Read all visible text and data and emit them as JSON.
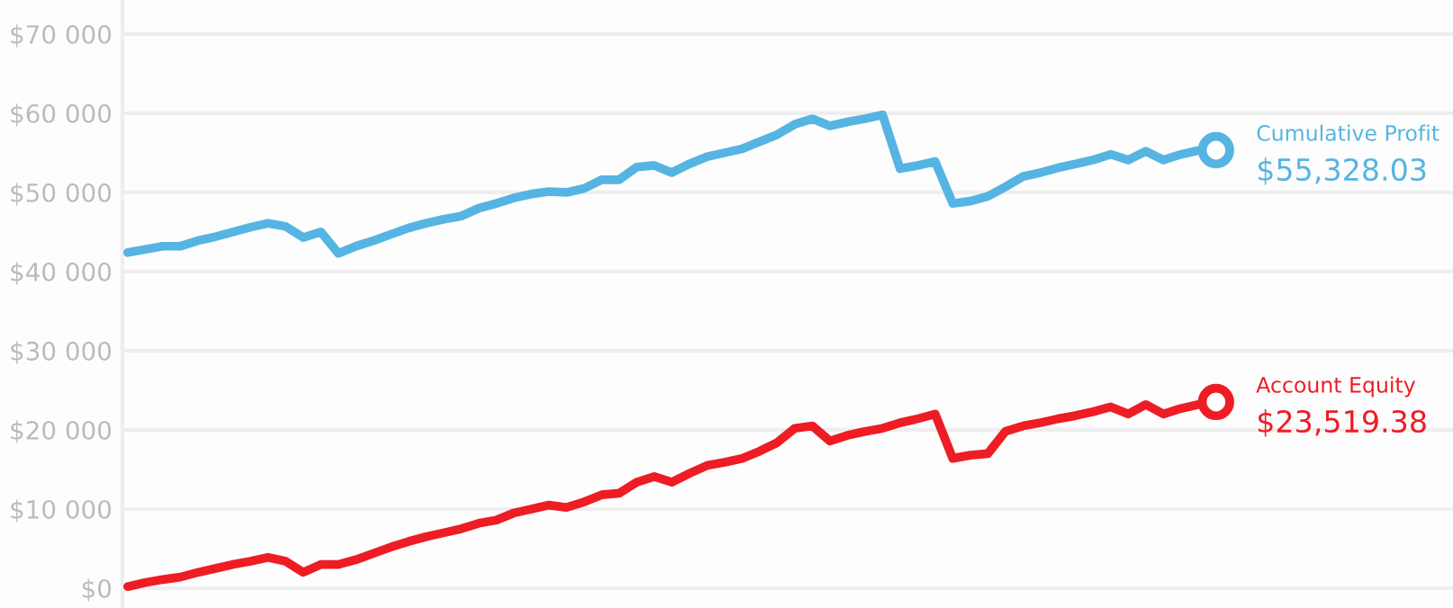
{
  "chart_data": {
    "type": "line",
    "categories": [
      null,
      null,
      null,
      null,
      null,
      null,
      null,
      null,
      null,
      null,
      null,
      null,
      null,
      null,
      null,
      null,
      null,
      null,
      null,
      null,
      null,
      null,
      null,
      null,
      null,
      null,
      null,
      null,
      null,
      null,
      null,
      null,
      null,
      null,
      null,
      null,
      null,
      null,
      null,
      null,
      null,
      null,
      null,
      null,
      null,
      null,
      null,
      null,
      null,
      null,
      null,
      null,
      null,
      null,
      null,
      null,
      null,
      null,
      null,
      null,
      null,
      null,
      null
    ],
    "series": [
      {
        "name": "Cumulative Profit",
        "color": "#56b4e3",
        "values": [
          42400,
          42800,
          43200,
          43200,
          43900,
          44400,
          45000,
          45600,
          46100,
          45700,
          44300,
          45000,
          42300,
          43200,
          43900,
          44700,
          45500,
          46100,
          46600,
          47000,
          48000,
          48600,
          49300,
          49800,
          50100,
          50000,
          50500,
          51600,
          51600,
          53200,
          53400,
          52500,
          53600,
          54500,
          55000,
          55500,
          56400,
          57300,
          58600,
          59300,
          58400,
          58900,
          59300,
          59800,
          53000,
          53400,
          53900,
          48600,
          48900,
          49500,
          50700,
          52000,
          52500,
          53100,
          53600,
          54100,
          54800,
          54100,
          55200,
          54100,
          54800,
          55300,
          55328.03
        ],
        "value_labels": [
          null,
          null,
          null,
          null,
          null,
          null,
          null,
          null,
          null,
          null,
          null,
          null,
          null,
          null,
          null,
          null,
          null,
          null,
          null,
          null,
          null,
          null,
          null,
          null,
          null,
          null,
          null,
          null,
          null,
          null,
          null,
          null,
          null,
          null,
          null,
          null,
          null,
          null,
          null,
          null,
          null,
          null,
          null,
          null,
          null,
          null,
          null,
          null,
          null,
          null,
          null,
          null,
          null,
          null,
          null,
          null,
          null,
          null,
          null,
          null,
          null,
          null,
          "$55,328.03"
        ]
      },
      {
        "name": "Account Equity",
        "color": "#ee1c25",
        "values": [
          200,
          700,
          1100,
          1400,
          2000,
          2500,
          3000,
          3400,
          3900,
          3400,
          2000,
          3000,
          3000,
          3600,
          4400,
          5200,
          5900,
          6500,
          7000,
          7500,
          8200,
          8600,
          9500,
          10000,
          10500,
          10200,
          10900,
          11800,
          12000,
          13400,
          14100,
          13400,
          14500,
          15500,
          15900,
          16400,
          17300,
          18400,
          20200,
          20500,
          18600,
          19300,
          19800,
          20200,
          20900,
          21400,
          22000,
          16400,
          16800,
          17000,
          19800,
          20500,
          20900,
          21400,
          21800,
          22300,
          22900,
          22000,
          23200,
          22000,
          22700,
          23200,
          23519.38
        ],
        "value_labels": [
          null,
          null,
          null,
          null,
          null,
          null,
          null,
          null,
          null,
          null,
          null,
          null,
          null,
          null,
          null,
          null,
          null,
          null,
          null,
          null,
          null,
          null,
          null,
          null,
          null,
          null,
          null,
          null,
          null,
          null,
          null,
          null,
          null,
          null,
          null,
          null,
          null,
          null,
          null,
          null,
          null,
          null,
          null,
          null,
          null,
          null,
          null,
          null,
          null,
          null,
          null,
          null,
          null,
          null,
          null,
          null,
          null,
          null,
          null,
          null,
          null,
          null,
          "$23,519.38"
        ]
      }
    ],
    "ylim": [
      -2500,
      74300
    ],
    "yticks": [
      {
        "value": 0,
        "label": "$0"
      },
      {
        "value": 10000,
        "label": "$10 000"
      },
      {
        "value": 20000,
        "label": "$20 000"
      },
      {
        "value": 30000,
        "label": "$30 000"
      },
      {
        "value": 40000,
        "label": "$40 000"
      },
      {
        "value": 50000,
        "label": "$50 000"
      },
      {
        "value": 60000,
        "label": "$60 000"
      },
      {
        "value": 70000,
        "label": "$70 000"
      }
    ],
    "grid": "y",
    "tick_labels": "y",
    "line_style": "solid"
  }
}
